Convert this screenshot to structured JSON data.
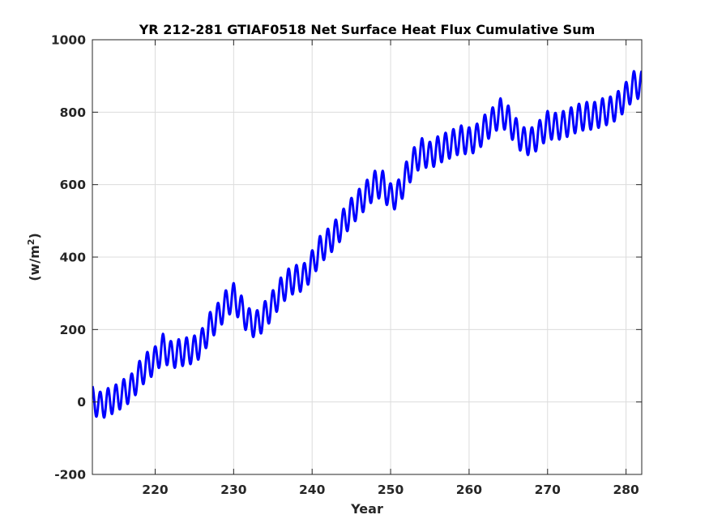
{
  "chart_data": {
    "type": "line",
    "title": "YR 212-281 GTIAF0518 Net Surface Heat Flux  Cumulative Sum",
    "xlabel": "Year",
    "ylabel_base": "(w/m",
    "ylabel_sup": "2",
    "ylabel_close": ")",
    "xlim": [
      212,
      282
    ],
    "ylim": [
      -200,
      1000
    ],
    "grid": true,
    "xticks": [
      220,
      230,
      240,
      250,
      260,
      270,
      280
    ],
    "xtick_labels": [
      "220",
      "230",
      "240",
      "250",
      "260",
      "270",
      "280"
    ],
    "yticks": [
      -200,
      0,
      200,
      400,
      600,
      800,
      1000
    ],
    "ytick_labels": [
      "-200",
      "0",
      "200",
      "400",
      "600",
      "800",
      "1000"
    ],
    "line_color": "#0000ff",
    "annual_cycle_amplitude": 38,
    "series": [
      {
        "trend": [
          [
            212,
            5
          ],
          [
            213,
            -10
          ],
          [
            214,
            0
          ],
          [
            215,
            10
          ],
          [
            216,
            25
          ],
          [
            217,
            40
          ],
          [
            218,
            75
          ],
          [
            219,
            100
          ],
          [
            220,
            115
          ],
          [
            221,
            150
          ],
          [
            222,
            130
          ],
          [
            223,
            135
          ],
          [
            224,
            140
          ],
          [
            225,
            145
          ],
          [
            226,
            165
          ],
          [
            227,
            210
          ],
          [
            228,
            235
          ],
          [
            229,
            270
          ],
          [
            230,
            290
          ],
          [
            231,
            255
          ],
          [
            232,
            220
          ],
          [
            233,
            215
          ],
          [
            234,
            240
          ],
          [
            235,
            270
          ],
          [
            236,
            305
          ],
          [
            237,
            330
          ],
          [
            238,
            340
          ],
          [
            239,
            345
          ],
          [
            240,
            380
          ],
          [
            241,
            420
          ],
          [
            242,
            440
          ],
          [
            243,
            465
          ],
          [
            244,
            495
          ],
          [
            245,
            525
          ],
          [
            246,
            550
          ],
          [
            247,
            575
          ],
          [
            248,
            600
          ],
          [
            249,
            600
          ],
          [
            250,
            565
          ],
          [
            251,
            575
          ],
          [
            252,
            625
          ],
          [
            253,
            665
          ],
          [
            254,
            690
          ],
          [
            255,
            680
          ],
          [
            256,
            695
          ],
          [
            257,
            705
          ],
          [
            258,
            715
          ],
          [
            259,
            725
          ],
          [
            260,
            720
          ],
          [
            261,
            730
          ],
          [
            262,
            755
          ],
          [
            263,
            775
          ],
          [
            264,
            800
          ],
          [
            265,
            780
          ],
          [
            266,
            745
          ],
          [
            267,
            720
          ],
          [
            268,
            720
          ],
          [
            269,
            740
          ],
          [
            270,
            765
          ],
          [
            271,
            760
          ],
          [
            272,
            765
          ],
          [
            273,
            775
          ],
          [
            274,
            785
          ],
          [
            275,
            790
          ],
          [
            276,
            790
          ],
          [
            277,
            800
          ],
          [
            278,
            805
          ],
          [
            279,
            820
          ],
          [
            280,
            845
          ],
          [
            281,
            875
          ],
          [
            282,
            875
          ]
        ]
      }
    ]
  }
}
